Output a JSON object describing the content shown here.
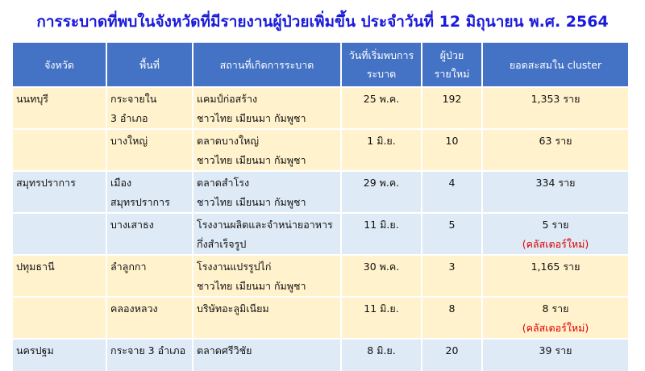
{
  "title": "การระบาดที่พบในจังหวัดที่มีรายงานผู้ป่วยเพิ่มขึ้น ประจำวันที่ 12 มิถุนายน พ.ศ. 2564",
  "colors": {
    "header": "#4472C4",
    "row_yellow": "#FFF2CC",
    "row_blue": "#DEEAF6",
    "title": "#1a1adb",
    "new_cluster": "#e00000"
  },
  "headers": [
    "จังหวัด",
    "พื้นที่",
    "สถานที่เกิดการระบาด",
    "วันที่เริ่มพบการ",
    "ระบาด",
    "ผู้ป่วย",
    "รายใหม่",
    "ยอดสะสมใน cluster"
  ],
  "rows": [
    {
      "province": "นนทบุรี",
      "area": [
        "กระจายใน",
        "3 อำเภอ"
      ],
      "place": [
        "แคมป์ก่อสร้าง",
        "ชาวไทย เมียนมา  กัมพูชา"
      ],
      "date": "25 พ.ค.",
      "new": "192",
      "total": "1,353 ราย",
      "note": ""
    },
    {
      "province": "",
      "area": [
        "บางใหญ่",
        ""
      ],
      "place": [
        "ตลาดบางใหญ่",
        "ชาวไทย เมียนมา  กัมพูชา"
      ],
      "date": "1 มิ.ย.",
      "new": "10",
      "total": "63 ราย",
      "note": ""
    },
    {
      "province": "สมุทรปราการ",
      "area": [
        "เมือง",
        "สมุทรปราการ"
      ],
      "place": [
        "ตลาดสำโรง",
        "ชาวไทย เมียนมา กัมพูชา"
      ],
      "date": "29 พ.ค.",
      "new": "4",
      "total": "334 ราย",
      "note": ""
    },
    {
      "province": "",
      "area": [
        "บางเสาธง",
        ""
      ],
      "place": [
        "โรงงานผลิตและจำหน่ายอาหาร",
        "กึ่งสำเร็จรูป"
      ],
      "date": "11 มิ.ย.",
      "new": "5",
      "total": "5 ราย",
      "note": "(คลัสเตอร์ใหม่)"
    },
    {
      "province": "ปทุมธานี",
      "area": [
        "ลำลูกกา",
        ""
      ],
      "place": [
        "โรงงานแปรรูปไก่",
        "ชาวไทย เมียนมา กัมพูชา"
      ],
      "date": "30 พ.ค.",
      "new": "3",
      "total": "1,165 ราย",
      "note": ""
    },
    {
      "province": "",
      "area": [
        "คลองหลวง",
        ""
      ],
      "place": [
        "บริษัทอะลูมิเนียม",
        ""
      ],
      "date": "11 มิ.ย.",
      "new": "8",
      "total": "8 ราย",
      "note": "(คลัสเตอร์ใหม่)"
    },
    {
      "province": "นครปฐม",
      "area": [
        "กระจาย 3 อำเภอ",
        ""
      ],
      "place": [
        "ตลาดศรีวิชัย",
        ""
      ],
      "date": "8 มิ.ย.",
      "new": "20",
      "total": "39 ราย",
      "note": ""
    }
  ]
}
